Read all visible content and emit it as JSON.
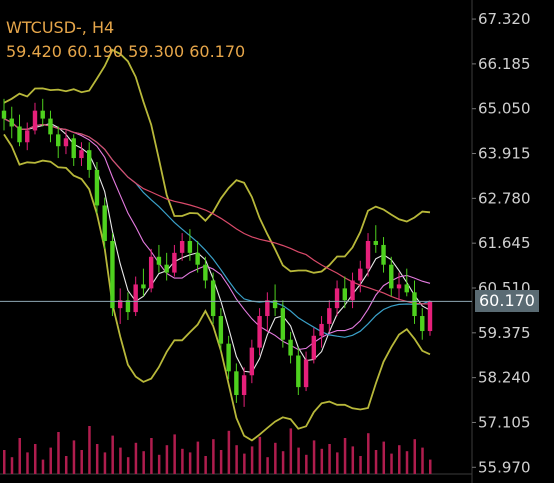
{
  "header": {
    "symbol_timeframe": "WTCUSD-, H4",
    "ohlc": "59.420 60.190 59.300 60.170"
  },
  "current_price_label": "60.170",
  "colors": {
    "background": "#000000",
    "bull": "#e5207a",
    "bear": "#4ed11e",
    "bollinger": "#b8b83a",
    "ma_fast": "#e8e8e8",
    "ma_mid": "#e57be0",
    "ma_slow": "#3aa0c8",
    "ma_long": "#d94a6a",
    "current_line": "#8fa8b5",
    "volume": "#b01d4e",
    "header_text": "#e6a64a",
    "axis_text": "#cfcfcf"
  },
  "chart_data": {
    "type": "candlestick",
    "symbol": "WTCUSD-",
    "timeframe": "H4",
    "y_axis_ticks": [
      "67.320",
      "66.185",
      "65.050",
      "63.915",
      "62.780",
      "61.645",
      "60.510",
      "59.375",
      "58.240",
      "57.105",
      "55.970"
    ],
    "ylim": [
      55.8,
      67.6
    ],
    "current_price": 60.17,
    "candles": [
      [
        65.0,
        65.3,
        64.5,
        64.8
      ],
      [
        64.8,
        65.1,
        64.3,
        64.6
      ],
      [
        64.6,
        64.9,
        64.1,
        64.2
      ],
      [
        64.2,
        64.7,
        64.0,
        64.5
      ],
      [
        64.5,
        65.2,
        64.4,
        65.0
      ],
      [
        65.0,
        65.3,
        64.6,
        64.8
      ],
      [
        64.8,
        65.0,
        64.2,
        64.4
      ],
      [
        64.4,
        64.6,
        63.8,
        64.1
      ],
      [
        64.1,
        64.5,
        63.9,
        64.3
      ],
      [
        64.3,
        64.4,
        63.6,
        63.8
      ],
      [
        63.8,
        64.2,
        63.6,
        64.0
      ],
      [
        64.0,
        64.2,
        63.3,
        63.5
      ],
      [
        63.5,
        63.7,
        62.4,
        62.6
      ],
      [
        62.6,
        62.8,
        61.5,
        61.7
      ],
      [
        61.7,
        61.9,
        59.8,
        60.0
      ],
      [
        60.0,
        60.5,
        59.6,
        60.2
      ],
      [
        60.2,
        60.4,
        59.7,
        59.9
      ],
      [
        59.9,
        60.8,
        59.8,
        60.6
      ],
      [
        60.6,
        61.0,
        60.3,
        60.5
      ],
      [
        60.5,
        61.5,
        60.4,
        61.3
      ],
      [
        61.3,
        61.6,
        60.9,
        61.1
      ],
      [
        61.1,
        61.4,
        60.7,
        60.9
      ],
      [
        60.9,
        61.6,
        60.8,
        61.4
      ],
      [
        61.4,
        61.9,
        61.2,
        61.7
      ],
      [
        61.7,
        62.0,
        61.2,
        61.4
      ],
      [
        61.4,
        61.7,
        60.9,
        61.1
      ],
      [
        61.1,
        61.3,
        60.5,
        60.7
      ],
      [
        60.7,
        60.9,
        59.6,
        59.8
      ],
      [
        59.8,
        60.0,
        58.9,
        59.1
      ],
      [
        59.1,
        59.3,
        58.2,
        58.4
      ],
      [
        58.4,
        58.6,
        57.6,
        57.8
      ],
      [
        57.8,
        58.5,
        57.5,
        58.3
      ],
      [
        58.3,
        59.2,
        58.1,
        59.0
      ],
      [
        59.0,
        60.0,
        58.8,
        59.8
      ],
      [
        59.8,
        60.4,
        59.4,
        60.2
      ],
      [
        60.2,
        60.6,
        59.8,
        60.0
      ],
      [
        60.0,
        60.2,
        59.0,
        59.2
      ],
      [
        59.2,
        59.4,
        58.6,
        58.8
      ],
      [
        58.8,
        59.0,
        57.8,
        58.0
      ],
      [
        58.0,
        58.9,
        57.9,
        58.7
      ],
      [
        58.7,
        59.5,
        58.6,
        59.3
      ],
      [
        59.3,
        59.8,
        59.0,
        59.6
      ],
      [
        59.6,
        60.2,
        59.4,
        60.0
      ],
      [
        60.0,
        60.7,
        59.8,
        60.5
      ],
      [
        60.5,
        60.8,
        60.0,
        60.2
      ],
      [
        60.2,
        60.9,
        60.0,
        60.7
      ],
      [
        60.7,
        61.2,
        60.4,
        61.0
      ],
      [
        61.0,
        61.9,
        60.8,
        61.7
      ],
      [
        61.7,
        62.1,
        61.4,
        61.6
      ],
      [
        61.6,
        61.8,
        60.9,
        61.1
      ],
      [
        61.1,
        61.3,
        60.3,
        60.5
      ],
      [
        60.5,
        60.9,
        60.2,
        60.6
      ],
      [
        60.6,
        61.0,
        60.3,
        60.4
      ],
      [
        60.4,
        60.7,
        59.6,
        59.8
      ],
      [
        59.8,
        60.0,
        59.2,
        59.42
      ],
      [
        59.42,
        60.19,
        59.3,
        60.17
      ]
    ],
    "volume": [
      20,
      14,
      30,
      18,
      25,
      12,
      22,
      35,
      15,
      28,
      20,
      40,
      25,
      18,
      32,
      22,
      14,
      26,
      19,
      30,
      16,
      24,
      33,
      21,
      18,
      27,
      15,
      29,
      20,
      36,
      24,
      17,
      23,
      31,
      14,
      26,
      19,
      38,
      22,
      16,
      28,
      21,
      25,
      18,
      30,
      23,
      15,
      34,
      20,
      27,
      17,
      24,
      19,
      29,
      22,
      12
    ]
  }
}
